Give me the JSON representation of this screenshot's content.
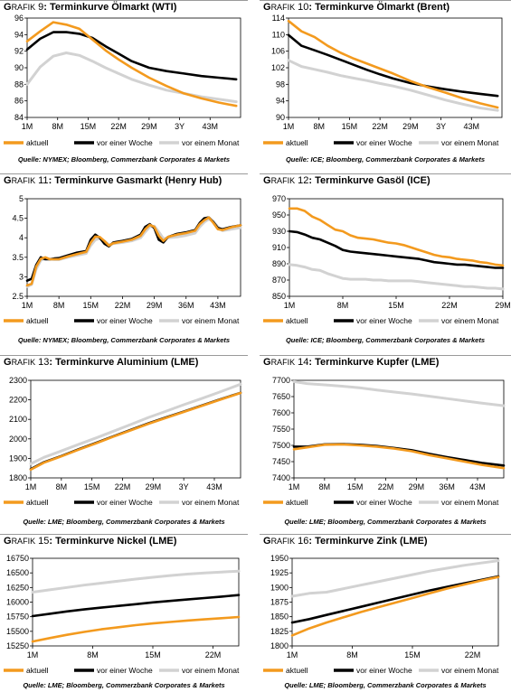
{
  "charts": [
    {
      "id": "grafik-9",
      "title_prefix": "G",
      "title_small": "RAFIK",
      "title_num": " 9",
      "title_main": ": Terminkurve Ölmarkt (WTI)",
      "source": "Quelle: NYMEX; Bloomberg, Commerzbank Corporates & Markets",
      "legend": [
        "aktuell",
        "vor einer Woche",
        "vor einem Monat"
      ]
    },
    {
      "id": "grafik-10",
      "title_prefix": "G",
      "title_small": "RAFIK",
      "title_num": " 10",
      "title_main": ": Terminkurve Ölmarkt (Brent)",
      "source": "Quelle: ICE; Bloomberg, Commerzbank Corporates & Markets",
      "legend": [
        "aktuell",
        "vor einer Woche",
        "vor einem Monat"
      ]
    },
    {
      "id": "grafik-11",
      "title_prefix": "G",
      "title_small": "RAFIK",
      "title_num": " 11",
      "title_main": ": Terminkurve Gasmarkt (Henry Hub)",
      "source": "Quelle: NYMEX; Bloomberg, Commerzbank Corporates & Markets",
      "legend": [
        "aktuell",
        "vor einer Woche",
        "vor einem Monat"
      ]
    },
    {
      "id": "grafik-12",
      "title_prefix": "G",
      "title_small": "RAFIK",
      "title_num": " 12",
      "title_main": ": Terminkurve Gasöl (ICE)",
      "source": "Quelle: ICE; Bloomberg, Commerzbank Corporates & Markets",
      "legend": [
        "aktuell",
        "vor einer Woche",
        "vor einem Monat"
      ]
    },
    {
      "id": "grafik-13",
      "title_prefix": "G",
      "title_small": "RAFIK",
      "title_num": " 13",
      "title_main": ": Terminkurve Aluminium (LME)",
      "source": "Quelle: LME; Bloomberg, Commerzbank Corporates & Markets",
      "legend": [
        "aktuell",
        "vor einer Woche",
        "vor einem Monat"
      ]
    },
    {
      "id": "grafik-14",
      "title_prefix": "G",
      "title_small": "RAFIK",
      "title_num": " 14",
      "title_main": ": Terminkurve Kupfer (LME)",
      "source": "Quelle: LME; Bloomberg, Commerzbank Corporates & Markets",
      "legend": [
        "aktuell",
        "vor einer Woche",
        "vor einem Monat"
      ]
    },
    {
      "id": "grafik-15",
      "title_prefix": "G",
      "title_small": "RAFIK",
      "title_num": " 15",
      "title_main": ": Terminkurve Nickel (LME)",
      "source": "Quelle: LME; Bloomberg, Commerzbank Corporates & Markets",
      "legend": [
        "aktuell",
        "vor einer Woche",
        "vor einem Monat"
      ]
    },
    {
      "id": "grafik-16",
      "title_prefix": "G",
      "title_small": "RAFIK",
      "title_num": " 16",
      "title_main": ": Terminkurve Zink (LME)",
      "source": "Quelle: LME; Bloomberg, Commerzbank Corporates & Markets",
      "legend": [
        "aktuell",
        "vor einer Woche",
        "vor einem Monat"
      ]
    }
  ],
  "colors": {
    "aktuell": "#F39A1E",
    "vor_einer_woche": "#000000",
    "vor_einem_monat": "#D2D2D2"
  },
  "chart_data": [
    {
      "type": "line",
      "x": [
        1,
        4,
        7,
        10,
        13,
        16,
        19,
        22,
        25,
        29,
        33,
        37,
        41,
        45,
        49
      ],
      "xticks": [
        1,
        8,
        15,
        22,
        29,
        36,
        43
      ],
      "xtick_labels": [
        "1M",
        "8M",
        "15M",
        "22M",
        "29M",
        "3Y",
        "43M"
      ],
      "ylim": [
        84,
        96
      ],
      "yticks": [
        84,
        86,
        88,
        90,
        92,
        94,
        96
      ],
      "xlim": [
        1,
        50
      ],
      "series": [
        {
          "name": "aktuell",
          "values": [
            93.2,
            94.4,
            95.5,
            95.2,
            94.7,
            93.4,
            92.1,
            91.0,
            90.0,
            88.8,
            87.8,
            86.9,
            86.3,
            85.8,
            85.4
          ]
        },
        {
          "name": "vor einer Woche",
          "values": [
            92.2,
            93.5,
            94.3,
            94.3,
            94.1,
            93.6,
            92.6,
            91.7,
            90.8,
            90.0,
            89.6,
            89.3,
            89.0,
            88.8,
            88.6
          ]
        },
        {
          "name": "vor einem Monat",
          "values": [
            88.0,
            90.1,
            91.4,
            91.8,
            91.5,
            90.8,
            90.0,
            89.3,
            88.6,
            87.9,
            87.3,
            86.9,
            86.5,
            86.2,
            85.9
          ]
        }
      ]
    },
    {
      "type": "line",
      "x": [
        1,
        4,
        7,
        10,
        13,
        16,
        19,
        22,
        25,
        29,
        33,
        37,
        41,
        45,
        49
      ],
      "xticks": [
        1,
        8,
        15,
        22,
        29,
        36,
        43
      ],
      "xtick_labels": [
        "1M",
        "8M",
        "15M",
        "22M",
        "29M",
        "3Y",
        "43M"
      ],
      "ylim": [
        90,
        114
      ],
      "yticks": [
        90,
        94,
        98,
        102,
        106,
        110,
        114
      ],
      "xlim": [
        1,
        50
      ],
      "series": [
        {
          "name": "aktuell",
          "values": [
            113.3,
            110.8,
            109.4,
            107.3,
            105.6,
            104.2,
            103.0,
            101.8,
            100.6,
            98.8,
            97.3,
            96.0,
            94.6,
            93.4,
            92.4
          ]
        },
        {
          "name": "vor einer Woche",
          "values": [
            109.9,
            107.3,
            106.2,
            105.1,
            103.9,
            102.7,
            101.5,
            100.4,
            99.4,
            98.3,
            97.5,
            96.8,
            96.2,
            95.7,
            95.2
          ]
        },
        {
          "name": "vor einem Monat",
          "values": [
            103.8,
            102.3,
            101.6,
            100.9,
            100.1,
            99.5,
            98.9,
            98.2,
            97.6,
            96.6,
            95.4,
            94.2,
            93.2,
            92.3,
            91.7
          ]
        }
      ]
    },
    {
      "type": "line",
      "x": [
        1,
        2,
        3,
        4,
        5,
        6,
        7,
        8,
        10,
        12,
        14,
        15,
        16,
        17,
        18,
        19,
        20,
        22,
        24,
        26,
        27,
        28,
        29,
        30,
        31,
        32,
        34,
        36,
        38,
        39,
        40,
        41,
        42,
        43,
        44,
        46,
        48
      ],
      "xticks": [
        1,
        8,
        15,
        22,
        29,
        36,
        43
      ],
      "xtick_labels": [
        "1M",
        "8M",
        "15M",
        "22M",
        "29M",
        "36M",
        "43M"
      ],
      "ylim": [
        2.5,
        5.0
      ],
      "yticks": [
        2.5,
        3.0,
        3.5,
        4.0,
        4.5,
        5.0
      ],
      "xlim": [
        1,
        48
      ],
      "series": [
        {
          "name": "aktuell",
          "values": [
            2.78,
            2.82,
            3.26,
            3.46,
            3.5,
            3.45,
            3.45,
            3.45,
            3.52,
            3.58,
            3.64,
            3.88,
            4.03,
            4.02,
            3.92,
            3.8,
            3.86,
            3.9,
            3.95,
            4.05,
            4.22,
            4.33,
            4.28,
            4.05,
            3.92,
            4.02,
            4.08,
            4.12,
            4.18,
            4.35,
            4.45,
            4.52,
            4.38,
            4.22,
            4.2,
            4.27,
            4.32
          ]
        },
        {
          "name": "vor einer Woche",
          "values": [
            2.9,
            2.95,
            3.3,
            3.5,
            3.45,
            3.45,
            3.47,
            3.48,
            3.55,
            3.62,
            3.66,
            3.95,
            4.08,
            4.0,
            3.85,
            3.78,
            3.88,
            3.92,
            3.97,
            4.08,
            4.28,
            4.35,
            4.25,
            3.95,
            3.88,
            4.02,
            4.1,
            4.14,
            4.2,
            4.38,
            4.5,
            4.52,
            4.4,
            4.25,
            4.22,
            4.28,
            4.32
          ]
        },
        {
          "name": "vor einem Monat",
          "values": [
            2.75,
            2.8,
            3.2,
            3.42,
            3.48,
            3.45,
            3.44,
            3.44,
            3.5,
            3.55,
            3.6,
            3.8,
            3.95,
            3.98,
            3.92,
            3.82,
            3.85,
            3.88,
            3.92,
            4.0,
            4.15,
            4.28,
            4.3,
            4.15,
            3.98,
            4.0,
            4.02,
            4.06,
            4.12,
            4.28,
            4.4,
            4.48,
            4.42,
            4.28,
            4.18,
            4.22,
            4.26
          ]
        }
      ]
    },
    {
      "type": "line",
      "x": [
        1,
        2,
        3,
        4,
        5,
        6,
        7,
        8,
        9,
        10,
        11,
        12,
        13,
        14,
        15,
        16,
        17,
        18,
        19,
        20,
        21,
        22,
        23,
        24,
        25,
        26,
        27,
        28,
        29
      ],
      "xticks": [
        1,
        8,
        15,
        22,
        29
      ],
      "xtick_labels": [
        "1M",
        "8M",
        "15M",
        "22M",
        "29M"
      ],
      "ylim": [
        850,
        970
      ],
      "yticks": [
        850,
        870,
        890,
        910,
        930,
        950,
        970
      ],
      "xlim": [
        1,
        29
      ],
      "series": [
        {
          "name": "aktuell",
          "values": [
            958,
            958,
            955,
            948,
            944,
            938,
            932,
            930,
            925,
            922,
            921,
            920,
            918,
            916,
            915,
            913,
            910,
            907,
            904,
            901,
            899,
            898,
            896,
            895,
            894,
            892,
            891,
            889,
            888
          ]
        },
        {
          "name": "vor einer Woche",
          "values": [
            930,
            929,
            926,
            922,
            920,
            916,
            912,
            907,
            905,
            904,
            903,
            902,
            901,
            900,
            899,
            898,
            897,
            896,
            894,
            892,
            891,
            890,
            889,
            889,
            888,
            887,
            886,
            885,
            885
          ]
        },
        {
          "name": "vor einem Monat",
          "values": [
            889,
            888,
            886,
            883,
            882,
            878,
            875,
            872,
            871,
            871,
            871,
            870,
            870,
            869,
            869,
            869,
            869,
            868,
            867,
            866,
            865,
            864,
            863,
            862,
            862,
            861,
            860,
            860,
            859
          ]
        }
      ]
    },
    {
      "type": "line",
      "x": [
        1,
        4,
        8,
        12,
        16,
        20,
        24,
        28,
        32,
        36,
        40,
        44,
        49
      ],
      "xticks": [
        1,
        8,
        15,
        22,
        29,
        36,
        43
      ],
      "xtick_labels": [
        "1M",
        "8M",
        "15M",
        "22M",
        "29M",
        "3Y",
        "43M"
      ],
      "ylim": [
        1800,
        2300
      ],
      "yticks": [
        1800,
        1900,
        2000,
        2100,
        2200,
        2300
      ],
      "xlim": [
        1,
        49
      ],
      "series": [
        {
          "name": "aktuell",
          "values": [
            1842,
            1878,
            1910,
            1945,
            1978,
            2012,
            2045,
            2078,
            2108,
            2138,
            2168,
            2198,
            2235
          ]
        },
        {
          "name": "vor einer Woche",
          "values": [
            1845,
            1880,
            1912,
            1947,
            1980,
            2014,
            2047,
            2080,
            2110,
            2140,
            2170,
            2200,
            2236
          ]
        },
        {
          "name": "vor einem Monat",
          "values": [
            1872,
            1905,
            1938,
            1972,
            2005,
            2040,
            2075,
            2110,
            2142,
            2175,
            2206,
            2238,
            2280
          ]
        }
      ]
    },
    {
      "type": "line",
      "x": [
        1,
        4,
        8,
        12,
        16,
        20,
        24,
        28,
        32,
        36,
        40,
        44,
        49
      ],
      "xticks": [
        1,
        8,
        15,
        22,
        29,
        36,
        43
      ],
      "xtick_labels": [
        "1M",
        "8M",
        "15M",
        "22M",
        "29M",
        "36M",
        "43M"
      ],
      "ylim": [
        7400,
        7700
      ],
      "yticks": [
        7400,
        7450,
        7500,
        7550,
        7600,
        7650,
        7700
      ],
      "xlim": [
        1,
        49
      ],
      "series": [
        {
          "name": "aktuell",
          "values": [
            7488,
            7494,
            7502,
            7503,
            7500,
            7496,
            7490,
            7482,
            7470,
            7460,
            7450,
            7440,
            7430
          ]
        },
        {
          "name": "vor einer Woche",
          "values": [
            7496,
            7496,
            7503,
            7504,
            7502,
            7498,
            7492,
            7485,
            7474,
            7464,
            7455,
            7446,
            7438
          ]
        },
        {
          "name": "vor einem Monat",
          "values": [
            7696,
            7690,
            7686,
            7682,
            7677,
            7670,
            7664,
            7658,
            7651,
            7644,
            7637,
            7630,
            7622
          ]
        }
      ]
    },
    {
      "type": "line",
      "x": [
        1,
        3,
        5,
        7,
        9,
        11,
        13,
        15,
        17,
        19,
        21,
        23,
        25
      ],
      "xticks": [
        1,
        8,
        15,
        22
      ],
      "xtick_labels": [
        "1M",
        "8M",
        "15M",
        "22M"
      ],
      "ylim": [
        15250,
        16750
      ],
      "yticks": [
        15250,
        15500,
        15750,
        16000,
        16250,
        16500,
        16750
      ],
      "xlim": [
        1,
        25
      ],
      "series": [
        {
          "name": "aktuell",
          "values": [
            15325,
            15385,
            15440,
            15490,
            15535,
            15570,
            15605,
            15635,
            15660,
            15685,
            15705,
            15725,
            15745
          ]
        },
        {
          "name": "vor einer Woche",
          "values": [
            15760,
            15800,
            15840,
            15875,
            15905,
            15935,
            15965,
            15995,
            16020,
            16045,
            16070,
            16095,
            16120
          ]
        },
        {
          "name": "vor einem Monat",
          "values": [
            16170,
            16210,
            16250,
            16290,
            16325,
            16360,
            16395,
            16425,
            16455,
            16480,
            16500,
            16515,
            16530
          ]
        }
      ]
    },
    {
      "type": "line",
      "x": [
        1,
        3,
        5,
        7,
        9,
        11,
        13,
        15,
        17,
        19,
        21,
        23,
        25
      ],
      "xticks": [
        1,
        8,
        15,
        22
      ],
      "xtick_labels": [
        "1M",
        "8M",
        "15M",
        "22M"
      ],
      "ylim": [
        1800,
        1950
      ],
      "yticks": [
        1800,
        1825,
        1850,
        1875,
        1900,
        1925,
        1950
      ],
      "xlim": [
        1,
        25
      ],
      "series": [
        {
          "name": "aktuell",
          "values": [
            1818,
            1830,
            1840,
            1849,
            1858,
            1866,
            1874,
            1882,
            1890,
            1898,
            1905,
            1912,
            1918
          ]
        },
        {
          "name": "vor einer Woche",
          "values": [
            1840,
            1846,
            1853,
            1860,
            1867,
            1874,
            1881,
            1888,
            1895,
            1901,
            1907,
            1913,
            1919
          ]
        },
        {
          "name": "vor einem Monat",
          "values": [
            1885,
            1890,
            1892,
            1898,
            1904,
            1910,
            1916,
            1922,
            1928,
            1933,
            1938,
            1942,
            1946
          ]
        }
      ]
    }
  ]
}
